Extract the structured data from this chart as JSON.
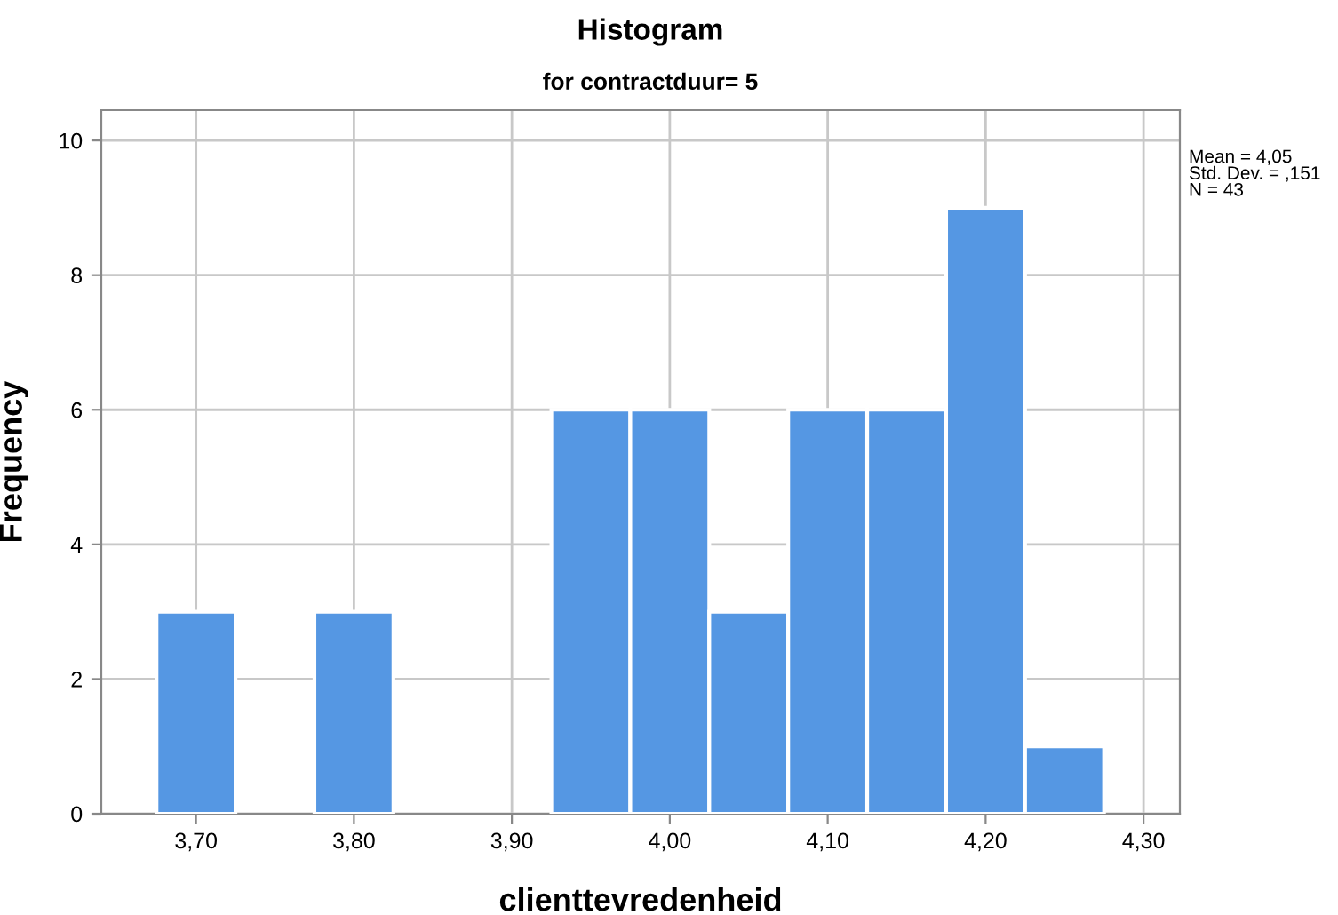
{
  "chart_data": {
    "type": "histogram",
    "title": "Histogram",
    "subtitle": "for contractduur= 5",
    "xlabel": "clienttevredenheid",
    "ylabel": "Frequency",
    "bins": [
      3.675,
      3.725,
      3.775,
      3.825,
      3.875,
      3.925,
      3.975,
      4.025,
      4.075,
      4.125,
      4.175,
      4.225,
      4.275
    ],
    "values": [
      3,
      0,
      3,
      0,
      0,
      6,
      6,
      3,
      6,
      6,
      9,
      1
    ],
    "color": "#5597e3",
    "xlim": [
      3.64,
      4.323
    ],
    "xticks": [
      {
        "value": 3.7,
        "label": "3,70"
      },
      {
        "value": 3.8,
        "label": "3,80"
      },
      {
        "value": 3.9,
        "label": "3,90"
      },
      {
        "value": 4.0,
        "label": "4,00"
      },
      {
        "value": 4.1,
        "label": "4,10"
      },
      {
        "value": 4.2,
        "label": "4,20"
      },
      {
        "value": 4.3,
        "label": "4,30"
      }
    ],
    "ylim": [
      0,
      10.45
    ],
    "yticks": [
      0,
      2,
      4,
      6,
      8,
      10
    ],
    "grid": true,
    "annotations": [
      "Mean = 4,05\nStd. Dev. = ,151\nN = 43"
    ]
  }
}
